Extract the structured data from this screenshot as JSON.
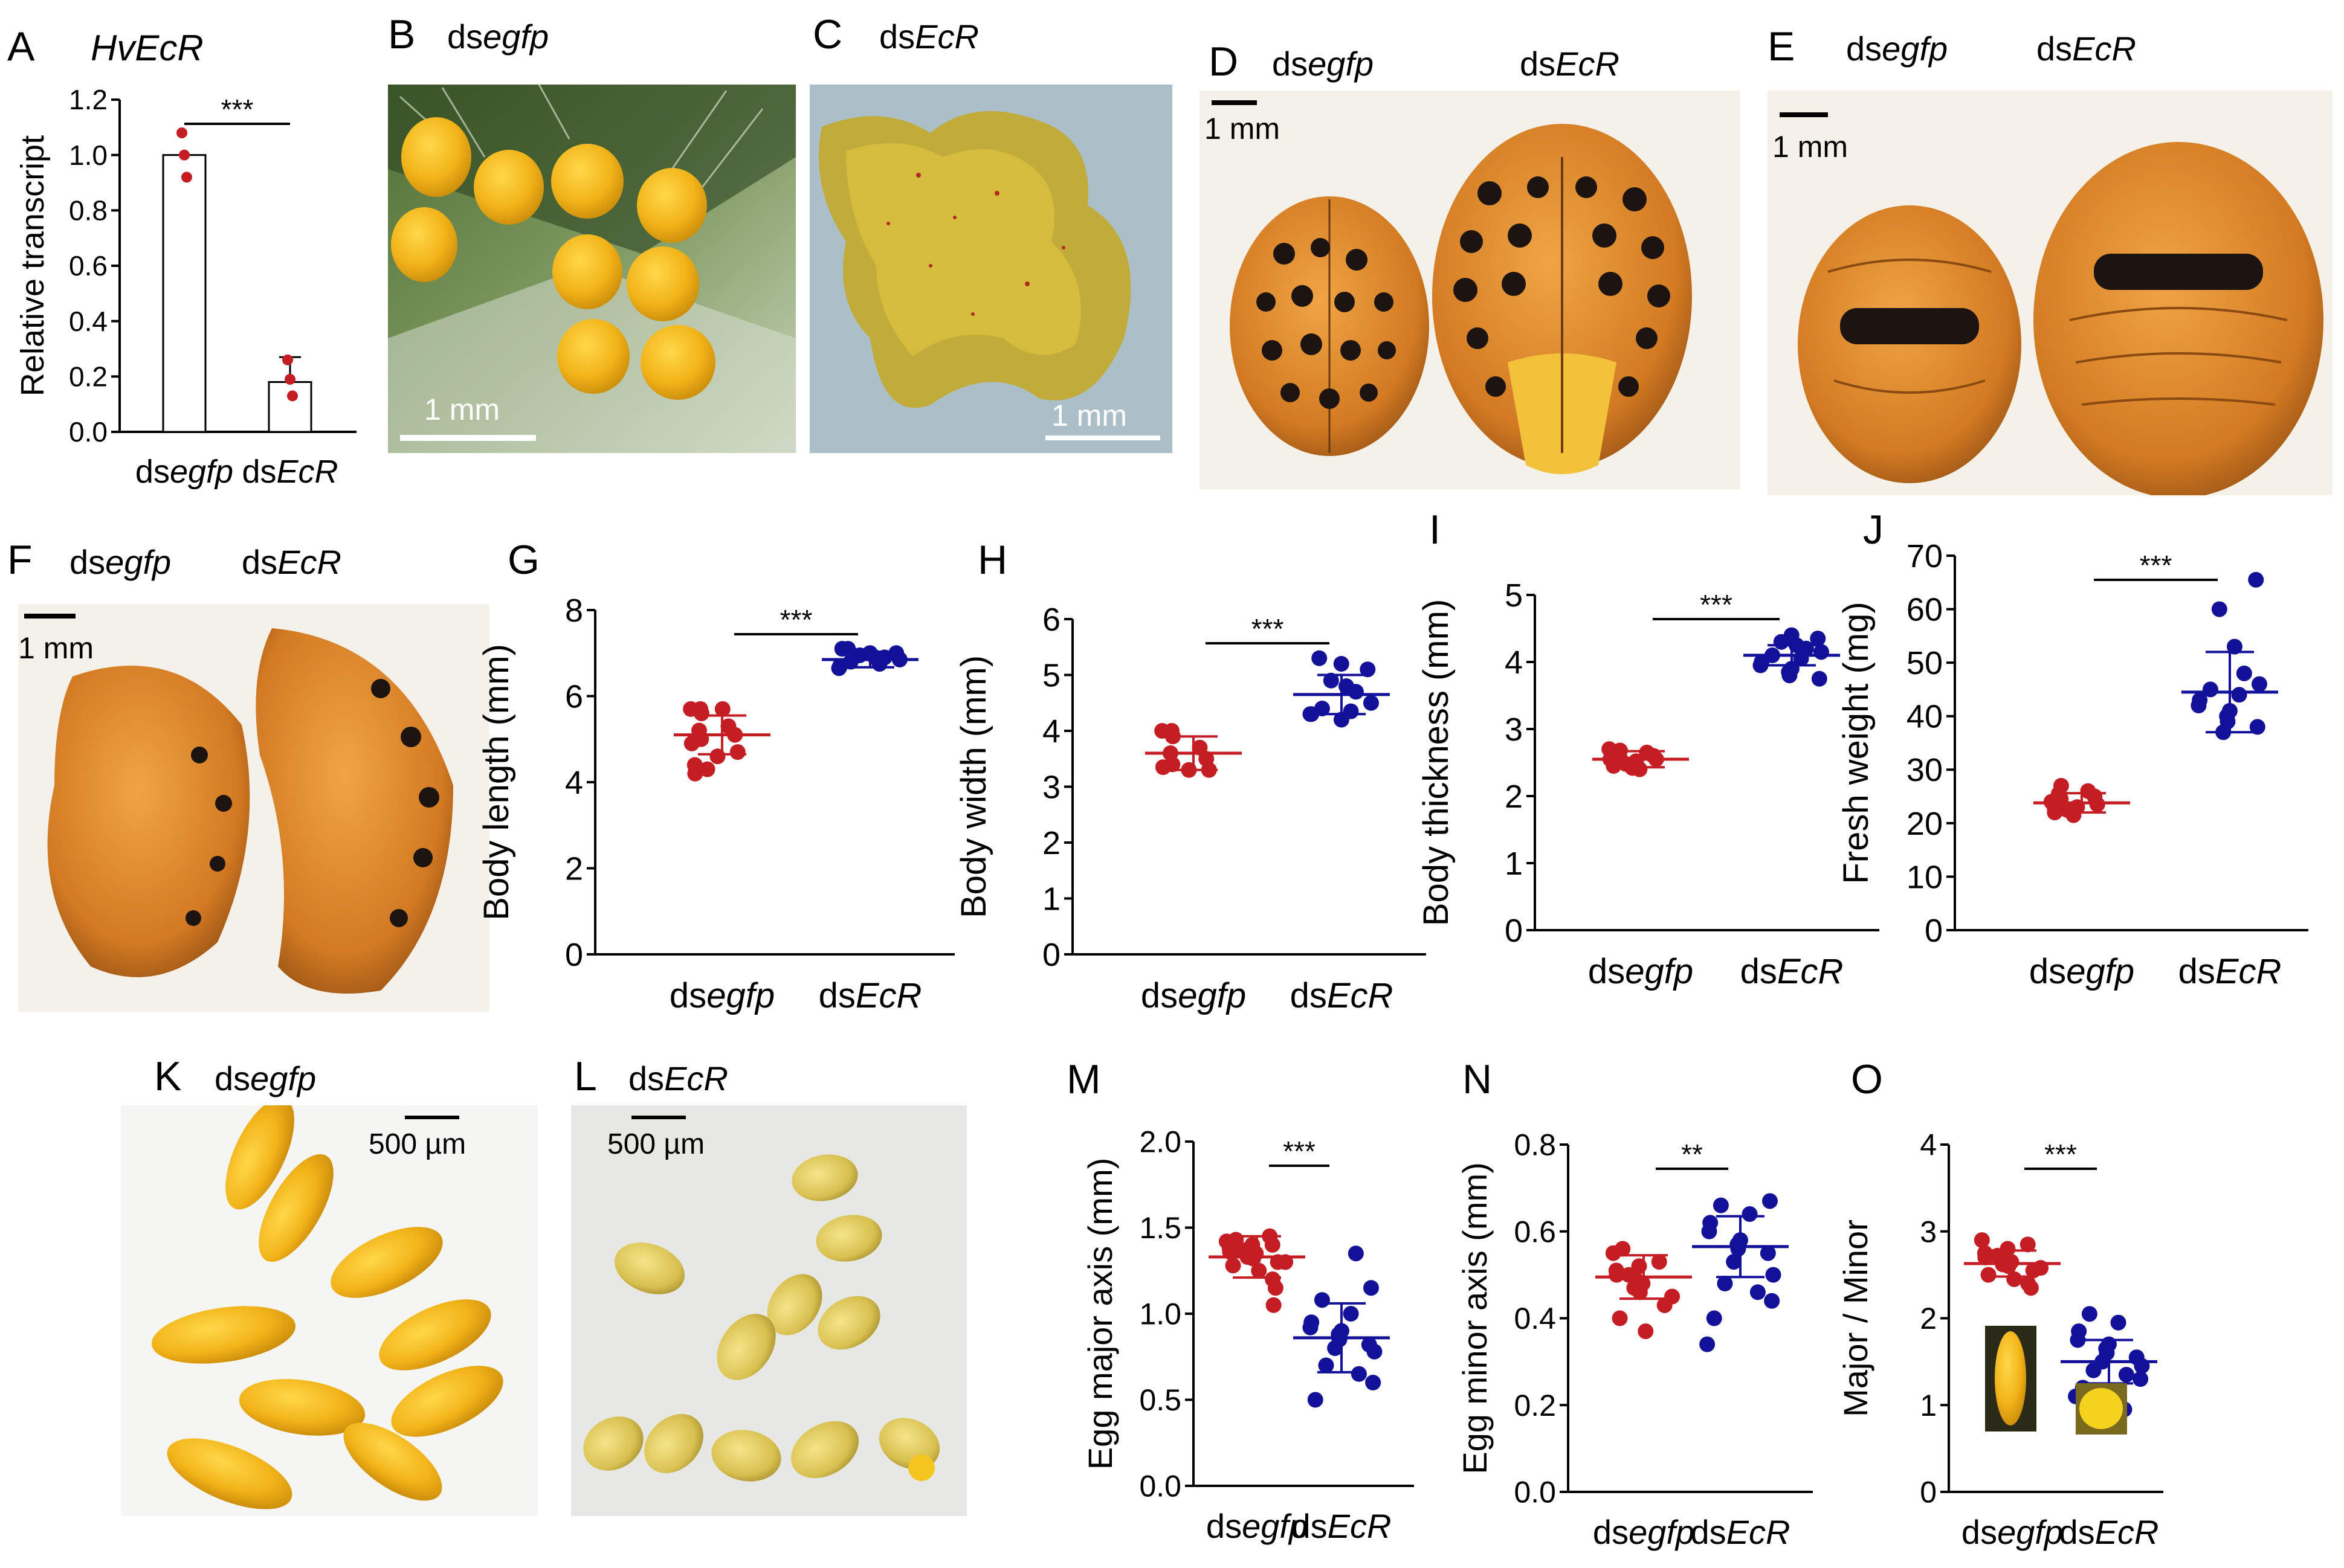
{
  "colors": {
    "control": "#c41e24",
    "treatment": "#13119a",
    "egg_yellow": "#f1b81a",
    "beetle_orange": "#d98228"
  },
  "groups": {
    "prefix": "ds",
    "control": "egfp",
    "treatment": "EcR"
  },
  "panels": {
    "A": {
      "letter": "A",
      "gene": "HvEcR"
    },
    "B": {
      "letter": "B",
      "scale": "1 mm"
    },
    "C": {
      "letter": "C",
      "scale": "1 mm"
    },
    "D": {
      "letter": "D",
      "scale": "1 mm"
    },
    "E": {
      "letter": "E",
      "scale": "1 mm"
    },
    "F": {
      "letter": "F",
      "scale": "1 mm"
    },
    "K": {
      "letter": "K",
      "scale": "500 µm"
    },
    "L": {
      "letter": "L",
      "scale": "500 µm"
    }
  },
  "chart_data": [
    {
      "id": "A",
      "type": "bar",
      "ylabel": "Relative transcript",
      "ylim": [
        0,
        1.2
      ],
      "ticks": [
        "0.0",
        "0.2",
        "0.4",
        "0.6",
        "0.8",
        "1.0",
        "1.2"
      ],
      "values": [
        1.0,
        0.18
      ],
      "errors": [
        0,
        0.09
      ],
      "points": [
        [
          1.08,
          1.0,
          0.92
        ],
        [
          0.26,
          0.19,
          0.13
        ]
      ],
      "significance": "***"
    },
    {
      "id": "G",
      "type": "scatter",
      "ylabel": "Body length (mm)",
      "ylim": [
        0,
        8
      ],
      "ticks": [
        "0",
        "2",
        "4",
        "6",
        "8"
      ],
      "means": [
        5.1,
        6.85
      ],
      "sd": [
        0.45,
        0.18
      ],
      "points": [
        [
          5.7,
          5.7,
          5.7,
          5.6,
          5.3,
          5.2,
          5.1,
          5.0,
          4.9,
          4.7,
          4.6,
          4.4,
          4.3,
          4.2
        ],
        [
          7.1,
          7.1,
          7.0,
          7.0,
          6.95,
          6.9,
          6.9,
          6.85,
          6.8,
          6.75,
          6.7,
          6.65
        ]
      ],
      "significance": "***"
    },
    {
      "id": "H",
      "type": "scatter",
      "ylabel": "Body width (mm)",
      "ylim": [
        0,
        6
      ],
      "ticks": [
        "0",
        "1",
        "2",
        "3",
        "4",
        "5",
        "6"
      ],
      "means": [
        3.6,
        4.65
      ],
      "sd": [
        0.3,
        0.35
      ],
      "points": [
        [
          4.0,
          4.0,
          3.9,
          3.7,
          3.6,
          3.5,
          3.4,
          3.35,
          3.3,
          3.3
        ],
        [
          5.3,
          5.2,
          5.1,
          4.9,
          4.8,
          4.7,
          4.5,
          4.4,
          4.35,
          4.3,
          4.3,
          4.2
        ]
      ],
      "significance": "***"
    },
    {
      "id": "I",
      "type": "scatter",
      "ylabel": "Body thickness (mm)",
      "ylim": [
        0,
        5
      ],
      "ticks": [
        "0",
        "1",
        "2",
        "3",
        "4",
        "5"
      ],
      "means": [
        2.55,
        4.1
      ],
      "sd": [
        0.12,
        0.15
      ],
      "points": [
        [
          2.7,
          2.68,
          2.65,
          2.62,
          2.6,
          2.58,
          2.55,
          2.55,
          2.52,
          2.5,
          2.48,
          2.45,
          2.42,
          2.4
        ],
        [
          4.4,
          4.35,
          4.3,
          4.25,
          4.2,
          4.15,
          4.1,
          4.05,
          4.0,
          3.95,
          3.9,
          3.85,
          3.8,
          3.75
        ]
      ],
      "significance": "***"
    },
    {
      "id": "J",
      "type": "scatter",
      "ylabel": "Fresh weight (mg)",
      "ylim": [
        0,
        70
      ],
      "ticks": [
        "0",
        "10",
        "20",
        "30",
        "40",
        "50",
        "60",
        "70"
      ],
      "means": [
        23.8,
        44.5
      ],
      "sd": [
        1.8,
        7.5
      ],
      "points": [
        [
          27,
          26,
          25.5,
          25,
          24.5,
          24,
          23.5,
          23,
          23,
          22.5,
          22,
          21.5
        ],
        [
          65.5,
          60,
          53,
          48,
          46,
          45,
          44,
          43,
          42,
          41,
          40,
          39,
          38,
          37
        ]
      ],
      "significance": "***"
    },
    {
      "id": "M",
      "type": "scatter",
      "ylabel": "Egg major axis (mm)",
      "ylim": [
        0,
        2.0
      ],
      "ticks": [
        "0.0",
        "0.5",
        "1.0",
        "1.5",
        "2.0"
      ],
      "means": [
        1.33,
        0.86
      ],
      "sd": [
        0.12,
        0.2
      ],
      "points": [
        [
          1.45,
          1.43,
          1.42,
          1.4,
          1.4,
          1.38,
          1.37,
          1.36,
          1.35,
          1.35,
          1.33,
          1.32,
          1.3,
          1.3,
          1.28,
          1.25,
          1.2,
          1.15,
          1.05
        ],
        [
          1.35,
          1.15,
          1.08,
          1.0,
          0.95,
          0.92,
          0.9,
          0.88,
          0.85,
          0.82,
          0.8,
          0.78,
          0.7,
          0.65,
          0.6,
          0.5
        ]
      ],
      "significance": "***"
    },
    {
      "id": "N",
      "type": "scatter",
      "ylabel": "Egg minor axis (mm)",
      "ylim": [
        0,
        0.8
      ],
      "ticks": [
        "0.0",
        "0.2",
        "0.4",
        "0.6",
        "0.8"
      ],
      "means": [
        0.495,
        0.565
      ],
      "sd": [
        0.05,
        0.07
      ],
      "points": [
        [
          0.56,
          0.55,
          0.53,
          0.52,
          0.51,
          0.5,
          0.5,
          0.49,
          0.48,
          0.47,
          0.46,
          0.45,
          0.43,
          0.4,
          0.37
        ],
        [
          0.67,
          0.66,
          0.64,
          0.62,
          0.6,
          0.58,
          0.57,
          0.56,
          0.55,
          0.53,
          0.5,
          0.48,
          0.46,
          0.44,
          0.4,
          0.34
        ]
      ],
      "significance": "**"
    },
    {
      "id": "O",
      "type": "scatter",
      "ylabel": "Major / Minor",
      "ylim": [
        0,
        4
      ],
      "ticks": [
        "0",
        "1",
        "2",
        "3",
        "4"
      ],
      "means": [
        2.63,
        1.5
      ],
      "sd": [
        0.15,
        0.25
      ],
      "points": [
        [
          2.9,
          2.85,
          2.8,
          2.75,
          2.72,
          2.7,
          2.68,
          2.65,
          2.62,
          2.6,
          2.58,
          2.55,
          2.5,
          2.45,
          2.4,
          2.35
        ],
        [
          2.05,
          1.95,
          1.85,
          1.75,
          1.7,
          1.65,
          1.6,
          1.55,
          1.5,
          1.45,
          1.4,
          1.35,
          1.3,
          1.2,
          1.1,
          0.95
        ]
      ],
      "significance": "***"
    }
  ]
}
